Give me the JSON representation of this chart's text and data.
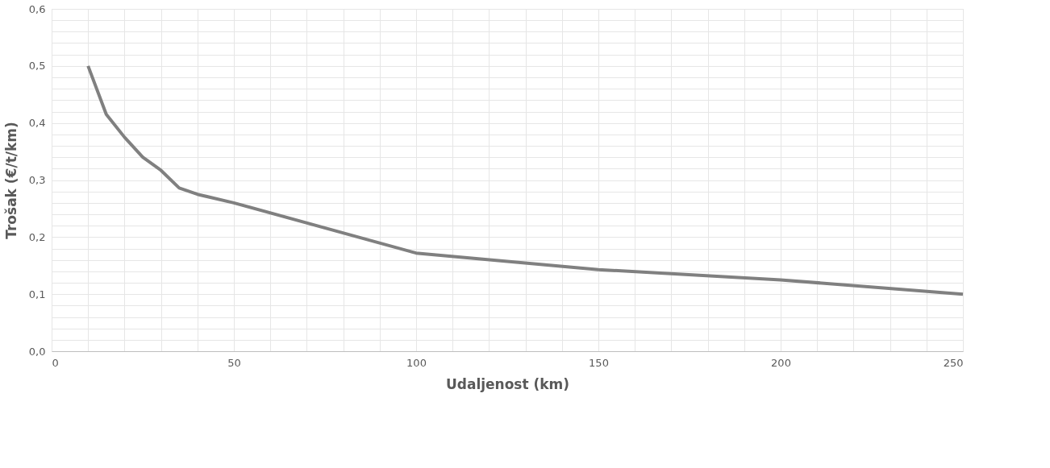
{
  "chart_data": {
    "type": "line",
    "xlabel": "Udaljenost (km)",
    "ylabel": "Trošak (€/t/km)",
    "x": [
      10,
      15,
      20,
      25,
      30,
      35,
      40,
      50,
      100,
      150,
      200,
      250
    ],
    "series": [
      {
        "color": "#808080",
        "values": [
          0.5,
          0.415,
          0.375,
          0.34,
          0.317,
          0.286,
          0.275,
          0.26,
          0.172,
          0.143,
          0.125,
          0.1
        ]
      }
    ],
    "xlim": [
      0,
      250
    ],
    "xticks": [
      0,
      {
        "value": 10,
        "label": null
      },
      {
        "value": 20,
        "label": null
      },
      {
        "value": 30,
        "label": null
      },
      {
        "value": 40,
        "label": null
      },
      50,
      {
        "value": 60,
        "label": null
      },
      {
        "value": 70,
        "label": null
      },
      {
        "value": 80,
        "label": null
      },
      {
        "value": 90,
        "label": null
      },
      100,
      {
        "value": 110,
        "label": null
      },
      {
        "value": 120,
        "label": null
      },
      {
        "value": 130,
        "label": null
      },
      {
        "value": 140,
        "label": null
      },
      150,
      {
        "value": 160,
        "label": null
      },
      {
        "value": 170,
        "label": null
      },
      {
        "value": 180,
        "label": null
      },
      {
        "value": 190,
        "label": null
      },
      200,
      {
        "value": 210,
        "label": null
      },
      {
        "value": 220,
        "label": null
      },
      {
        "value": 230,
        "label": null
      },
      {
        "value": 240,
        "label": null
      },
      250
    ],
    "ylim": [
      0,
      0.6
    ],
    "yticks": [
      {
        "value": 0,
        "label": "0,0"
      },
      {
        "value": 0.02,
        "label": null
      },
      {
        "value": 0.04,
        "label": null
      },
      {
        "value": 0.06,
        "label": null
      },
      {
        "value": 0.08,
        "label": null
      },
      {
        "value": 0.1,
        "label": "0,1"
      },
      {
        "value": 0.12,
        "label": null
      },
      {
        "value": 0.14,
        "label": null
      },
      {
        "value": 0.16,
        "label": null
      },
      {
        "value": 0.18,
        "label": null
      },
      {
        "value": 0.2,
        "label": "0,2"
      },
      {
        "value": 0.22,
        "label": null
      },
      {
        "value": 0.24,
        "label": null
      },
      {
        "value": 0.26,
        "label": null
      },
      {
        "value": 0.28,
        "label": null
      },
      {
        "value": 0.3,
        "label": "0,3"
      },
      {
        "value": 0.32,
        "label": null
      },
      {
        "value": 0.34,
        "label": null
      },
      {
        "value": 0.36,
        "label": null
      },
      {
        "value": 0.38,
        "label": null
      },
      {
        "value": 0.4,
        "label": "0,4"
      },
      {
        "value": 0.42,
        "label": null
      },
      {
        "value": 0.44,
        "label": null
      },
      {
        "value": 0.46,
        "label": null
      },
      {
        "value": 0.48,
        "label": null
      },
      {
        "value": 0.5,
        "label": "0,5"
      },
      {
        "value": 0.52,
        "label": null
      },
      {
        "value": 0.54,
        "label": null
      },
      {
        "value": 0.56,
        "label": null
      },
      {
        "value": 0.58,
        "label": null
      },
      {
        "value": 0.6,
        "label": "0,6"
      }
    ],
    "grid": true,
    "legend": false,
    "marker": "none",
    "line_style": "solid"
  }
}
